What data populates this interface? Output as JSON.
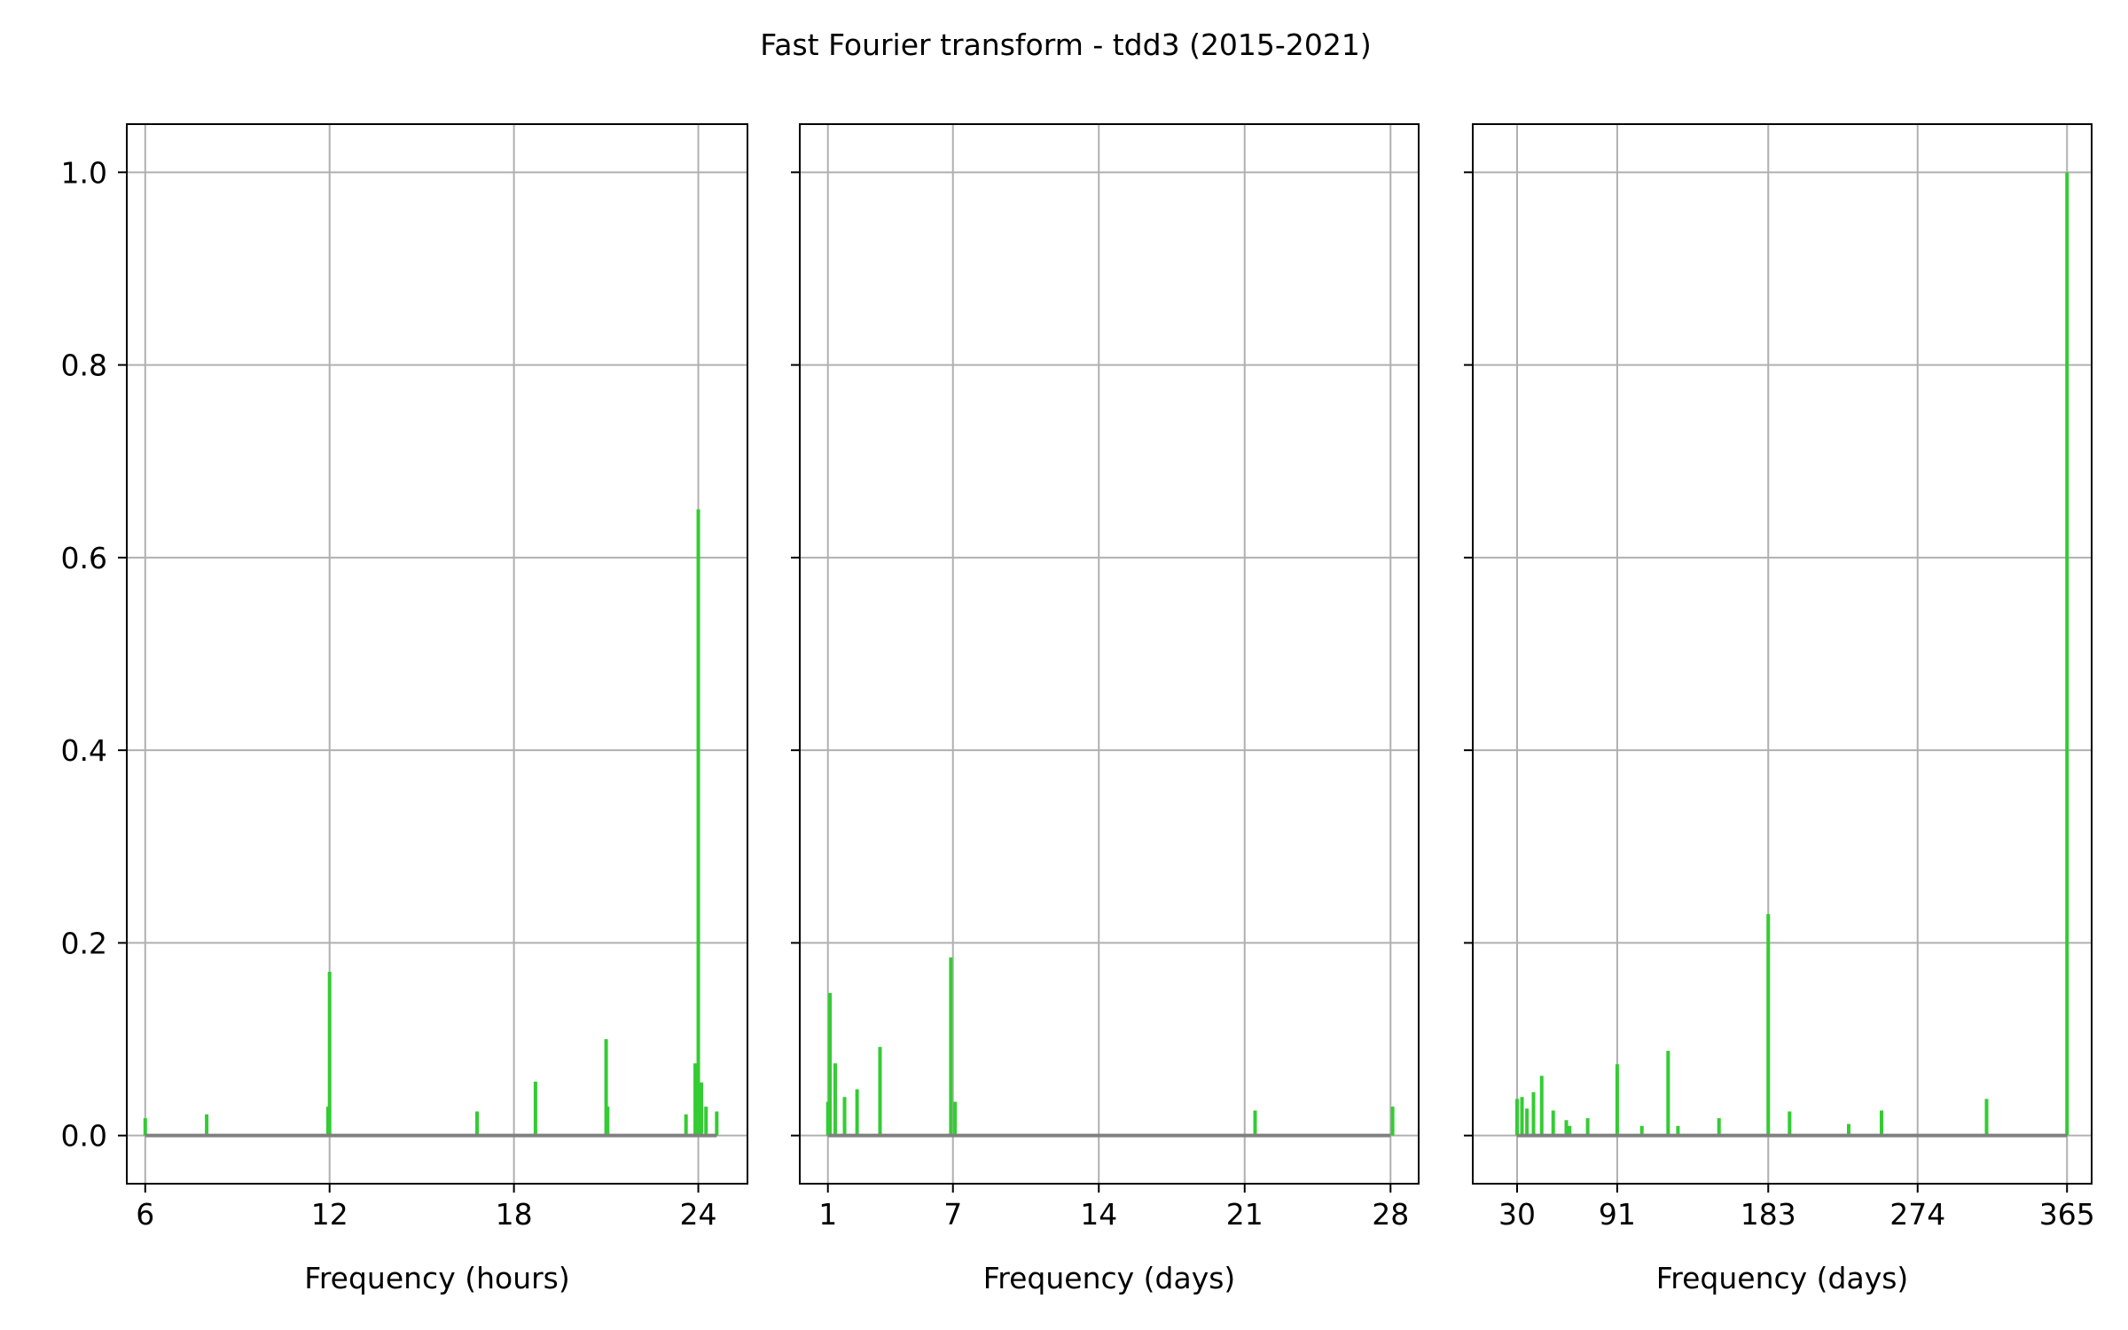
{
  "title": "Fast Fourier transform - tdd3 (2015-2021)",
  "colors": {
    "stem": "#33cc33",
    "baseline": "#808080",
    "grid": "#b0b0b0",
    "axes": "#000000"
  },
  "y_ticks": [
    "0.0",
    "0.2",
    "0.4",
    "0.6",
    "0.8",
    "1.0"
  ],
  "chart_data": [
    {
      "type": "bar",
      "xlabel": "Frequency (hours)",
      "ylabel": "",
      "xlim": [
        5.4,
        25.6
      ],
      "ylim": [
        -0.05,
        1.05
      ],
      "grid": true,
      "xticks": [
        6,
        12,
        18,
        24
      ],
      "xtick_labels": [
        "6",
        "12",
        "18",
        "24"
      ],
      "baseline": [
        6,
        24.6
      ],
      "x": [
        6.0,
        8.0,
        11.95,
        12.0,
        16.8,
        18.7,
        21.0,
        21.05,
        23.6,
        23.9,
        24.0,
        24.1,
        24.25,
        24.6
      ],
      "values": [
        0.018,
        0.022,
        0.03,
        0.17,
        0.025,
        0.056,
        0.1,
        0.03,
        0.022,
        0.075,
        0.65,
        0.055,
        0.03,
        0.025
      ]
    },
    {
      "type": "bar",
      "xlabel": "Frequency (days)",
      "ylabel": "",
      "xlim": [
        -0.35,
        29.35
      ],
      "ylim": [
        -0.05,
        1.05
      ],
      "grid": true,
      "xticks": [
        1,
        7,
        14,
        21,
        28
      ],
      "xtick_labels": [
        "1",
        "7",
        "14",
        "21",
        "28"
      ],
      "baseline": [
        1,
        28
      ],
      "x": [
        1.1,
        1.35,
        1.8,
        2.4,
        3.5,
        6.9,
        7.1,
        21.5,
        28.1
      ],
      "values": [
        0.148,
        0.075,
        0.04,
        0.048,
        0.092,
        0.185,
        0.035,
        0.026,
        0.03
      ],
      "x_secondary": [
        1.0
      ],
      "values_secondary": [
        0.035
      ]
    },
    {
      "type": "bar",
      "xlabel": "Frequency (days)",
      "ylabel": "",
      "xlim": [
        3,
        380
      ],
      "ylim": [
        -0.05,
        1.05
      ],
      "grid": true,
      "xticks": [
        30,
        91,
        183,
        274,
        365
      ],
      "xtick_labels": [
        "30",
        "91",
        "183",
        "274",
        "365"
      ],
      "baseline": [
        30,
        365
      ],
      "x": [
        30,
        33,
        36,
        40,
        45,
        52,
        60,
        62,
        73,
        91,
        106,
        122,
        128,
        153,
        183,
        196,
        232,
        252,
        316,
        365
      ],
      "values": [
        0.038,
        0.04,
        0.028,
        0.045,
        0.062,
        0.026,
        0.016,
        0.01,
        0.018,
        0.074,
        0.01,
        0.088,
        0.01,
        0.018,
        0.23,
        0.025,
        0.012,
        0.026,
        0.038,
        1.0
      ]
    }
  ]
}
